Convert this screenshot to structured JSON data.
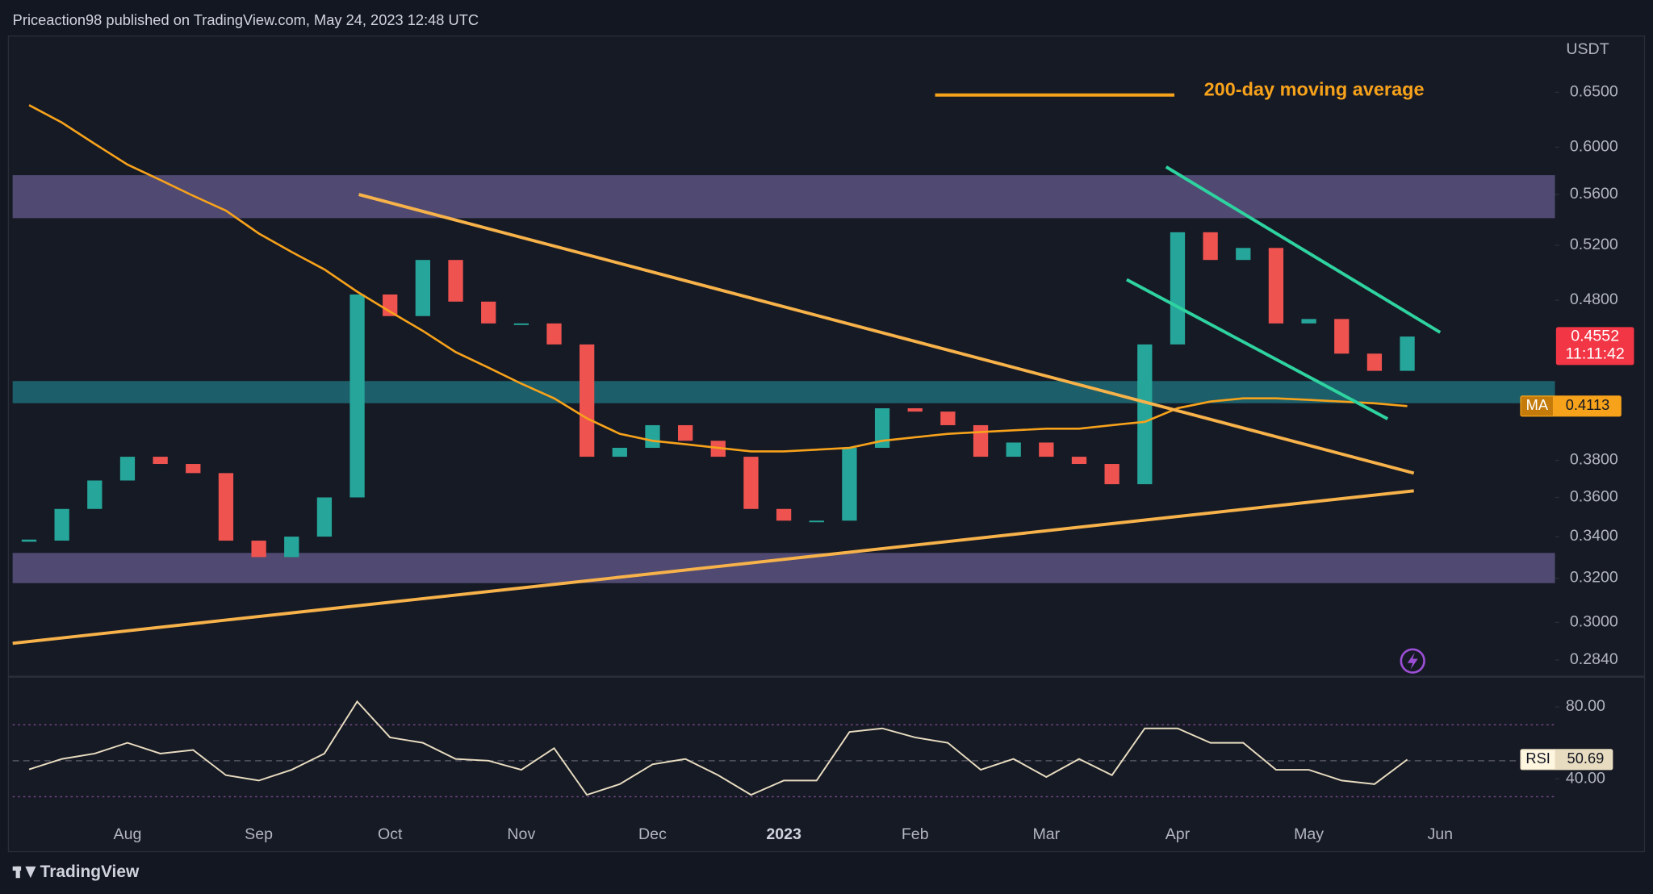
{
  "header": "Priceaction98 published on TradingView.com, May 24, 2023 12:48 UTC",
  "footer_brand": "TradingView",
  "chart_data": [
    {
      "type": "candlestick",
      "y_unit": "USDT",
      "categories": [
        null,
        null,
        null,
        "Aug",
        null,
        null,
        null,
        "Sep",
        null,
        null,
        null,
        "Oct",
        null,
        null,
        null,
        "Nov",
        null,
        null,
        null,
        "Dec",
        null,
        null,
        null,
        "2023",
        null,
        null,
        null,
        "Feb",
        null,
        null,
        null,
        "Mar",
        null,
        null,
        null,
        "Apr",
        null,
        null,
        null,
        "May",
        null,
        null,
        null,
        "Jun",
        null,
        null,
        null
      ],
      "series": [
        {
          "color_up": "#26a69a",
          "color_down": "#ef5350",
          "values": [
            0.338,
            0.354,
            0.369,
            0.382,
            0.378,
            0.373,
            0.338,
            0.33,
            0.34,
            0.36,
            0.484,
            0.469,
            0.509,
            0.479,
            0.464,
            0.464,
            0.45,
            0.382,
            0.387,
            0.4,
            0.391,
            0.382,
            0.354,
            0.348,
            0.348,
            0.387,
            0.41,
            0.408,
            0.4,
            0.382,
            0.39,
            0.382,
            0.378,
            0.367,
            0.45,
            0.53,
            0.509,
            0.518,
            0.464,
            0.467,
            0.444,
            0.433,
            0.4552,
            null,
            null,
            null,
            null
          ]
        },
        {
          "name": "200-day moving average",
          "color": "#f7a21b",
          "values": [
            0.638,
            0.622,
            0.603,
            0.585,
            0.572,
            0.559,
            0.547,
            0.529,
            0.515,
            0.502,
            0.486,
            0.472,
            0.459,
            0.445,
            0.435,
            0.425,
            0.416,
            0.404,
            0.395,
            0.391,
            0.389,
            0.387,
            0.385,
            0.385,
            0.386,
            0.387,
            0.391,
            0.393,
            0.395,
            0.396,
            0.397,
            0.398,
            0.398,
            0.4,
            0.402,
            0.41,
            0.414,
            0.416,
            0.416,
            0.415,
            0.414,
            0.413,
            0.4113,
            null,
            null,
            null,
            null
          ]
        }
      ],
      "ylim": [
        0.278,
        0.71
      ],
      "log_scale": true,
      "yticks": [
        {
          "value": 0.65,
          "label": "0.6500"
        },
        {
          "value": 0.6,
          "label": "0.6000"
        },
        {
          "value": 0.56,
          "label": "0.5600"
        },
        {
          "value": 0.52,
          "label": "0.5200"
        },
        {
          "value": 0.48,
          "label": "0.4800"
        },
        {
          "value": 0.38,
          "label": "0.3800"
        },
        {
          "value": 0.36,
          "label": "0.3600"
        },
        {
          "value": 0.34,
          "label": "0.3400"
        },
        {
          "value": 0.32,
          "label": "0.3200"
        },
        {
          "value": 0.3,
          "label": "0.3000"
        },
        {
          "value": 0.284,
          "label": "0.2840"
        }
      ],
      "last_price_color": "#f23645",
      "countdown": "11:11:42",
      "ma_badge": "MA",
      "zones": [
        {
          "from": 0.541,
          "to": 0.576,
          "color": "#5b5480"
        },
        {
          "from": 0.413,
          "to": 0.4266,
          "color": "#1d6b76"
        },
        {
          "from": 0.3177,
          "to": 0.332,
          "color": "#5b5480"
        }
      ],
      "trendlines": [
        {
          "from": [
            10.05,
            0.56
          ],
          "to": [
            42.2,
            0.373
          ],
          "color": "#f7b24a"
        },
        {
          "from": [
            -0.5,
            0.291
          ],
          "to": [
            42.2,
            0.3635
          ],
          "color": "#f7b24a"
        },
        {
          "from": [
            34.65,
            0.583
          ],
          "to": [
            43.0,
            0.458
          ],
          "color": "#2ed3a0"
        },
        {
          "from": [
            33.45,
            0.4946
          ],
          "to": [
            41.4,
            0.4037
          ],
          "color": "#2ed3a0"
        }
      ]
    },
    {
      "type": "line",
      "series": [
        {
          "name": "RSI",
          "color": "#e8dcc0",
          "values": [
            45.2,
            51,
            54,
            60,
            54,
            56,
            42,
            39,
            45,
            54,
            83,
            63,
            60,
            51,
            50,
            45,
            57,
            31,
            37,
            48,
            51,
            42,
            31,
            39,
            39,
            66,
            68,
            63,
            60,
            45,
            51,
            41,
            51,
            42,
            68,
            68,
            60,
            60,
            45,
            45,
            39,
            37,
            50.69,
            null,
            null,
            null,
            null
          ]
        }
      ],
      "ylim": [
        17,
        95
      ],
      "yticks": [
        {
          "value": 80,
          "label": "80.00"
        },
        {
          "value": 40,
          "label": "40.00"
        }
      ],
      "levels": [
        70,
        50,
        30
      ]
    }
  ]
}
